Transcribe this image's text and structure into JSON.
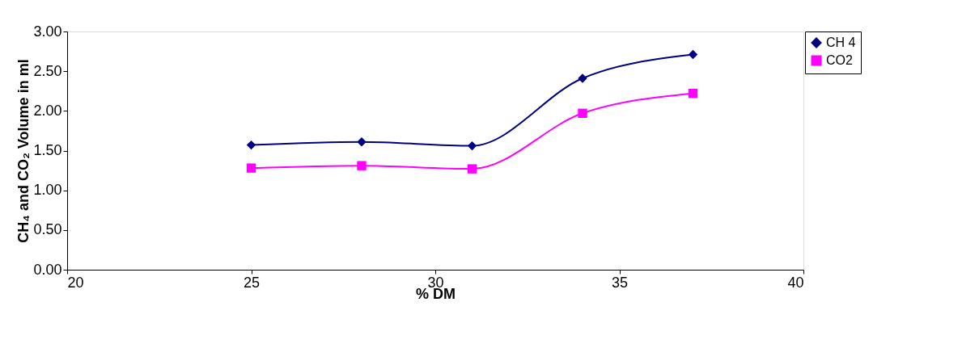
{
  "chart_data": {
    "type": "line",
    "xlabel": "% DM",
    "ylabel": "CH₄ and CO₂ Volume in ml",
    "x": [
      25,
      28,
      31,
      34,
      37
    ],
    "series": [
      {
        "name": "CH 4",
        "color": "#000080",
        "marker": "diamond",
        "values": [
          1.57,
          1.61,
          1.56,
          2.41,
          2.71
        ]
      },
      {
        "name": "CO2",
        "color": "#ff00ff",
        "marker": "square",
        "values": [
          1.28,
          1.31,
          1.27,
          1.97,
          2.22
        ]
      }
    ],
    "xlim": [
      20,
      40
    ],
    "xticks": [
      20,
      25,
      30,
      35,
      40
    ],
    "ylim": [
      0,
      3
    ],
    "yticks": [
      {
        "value": 0,
        "label": "0.00"
      },
      {
        "value": 0.5,
        "label": "0.50"
      },
      {
        "value": 1,
        "label": "1.00"
      },
      {
        "value": 1.5,
        "label": "1.50"
      },
      {
        "value": 2,
        "label": "2.00"
      },
      {
        "value": 2.5,
        "label": "2.50"
      },
      {
        "value": 3,
        "label": "3.00"
      }
    ],
    "grid": false,
    "legend": "top right",
    "line_style": "solid"
  }
}
